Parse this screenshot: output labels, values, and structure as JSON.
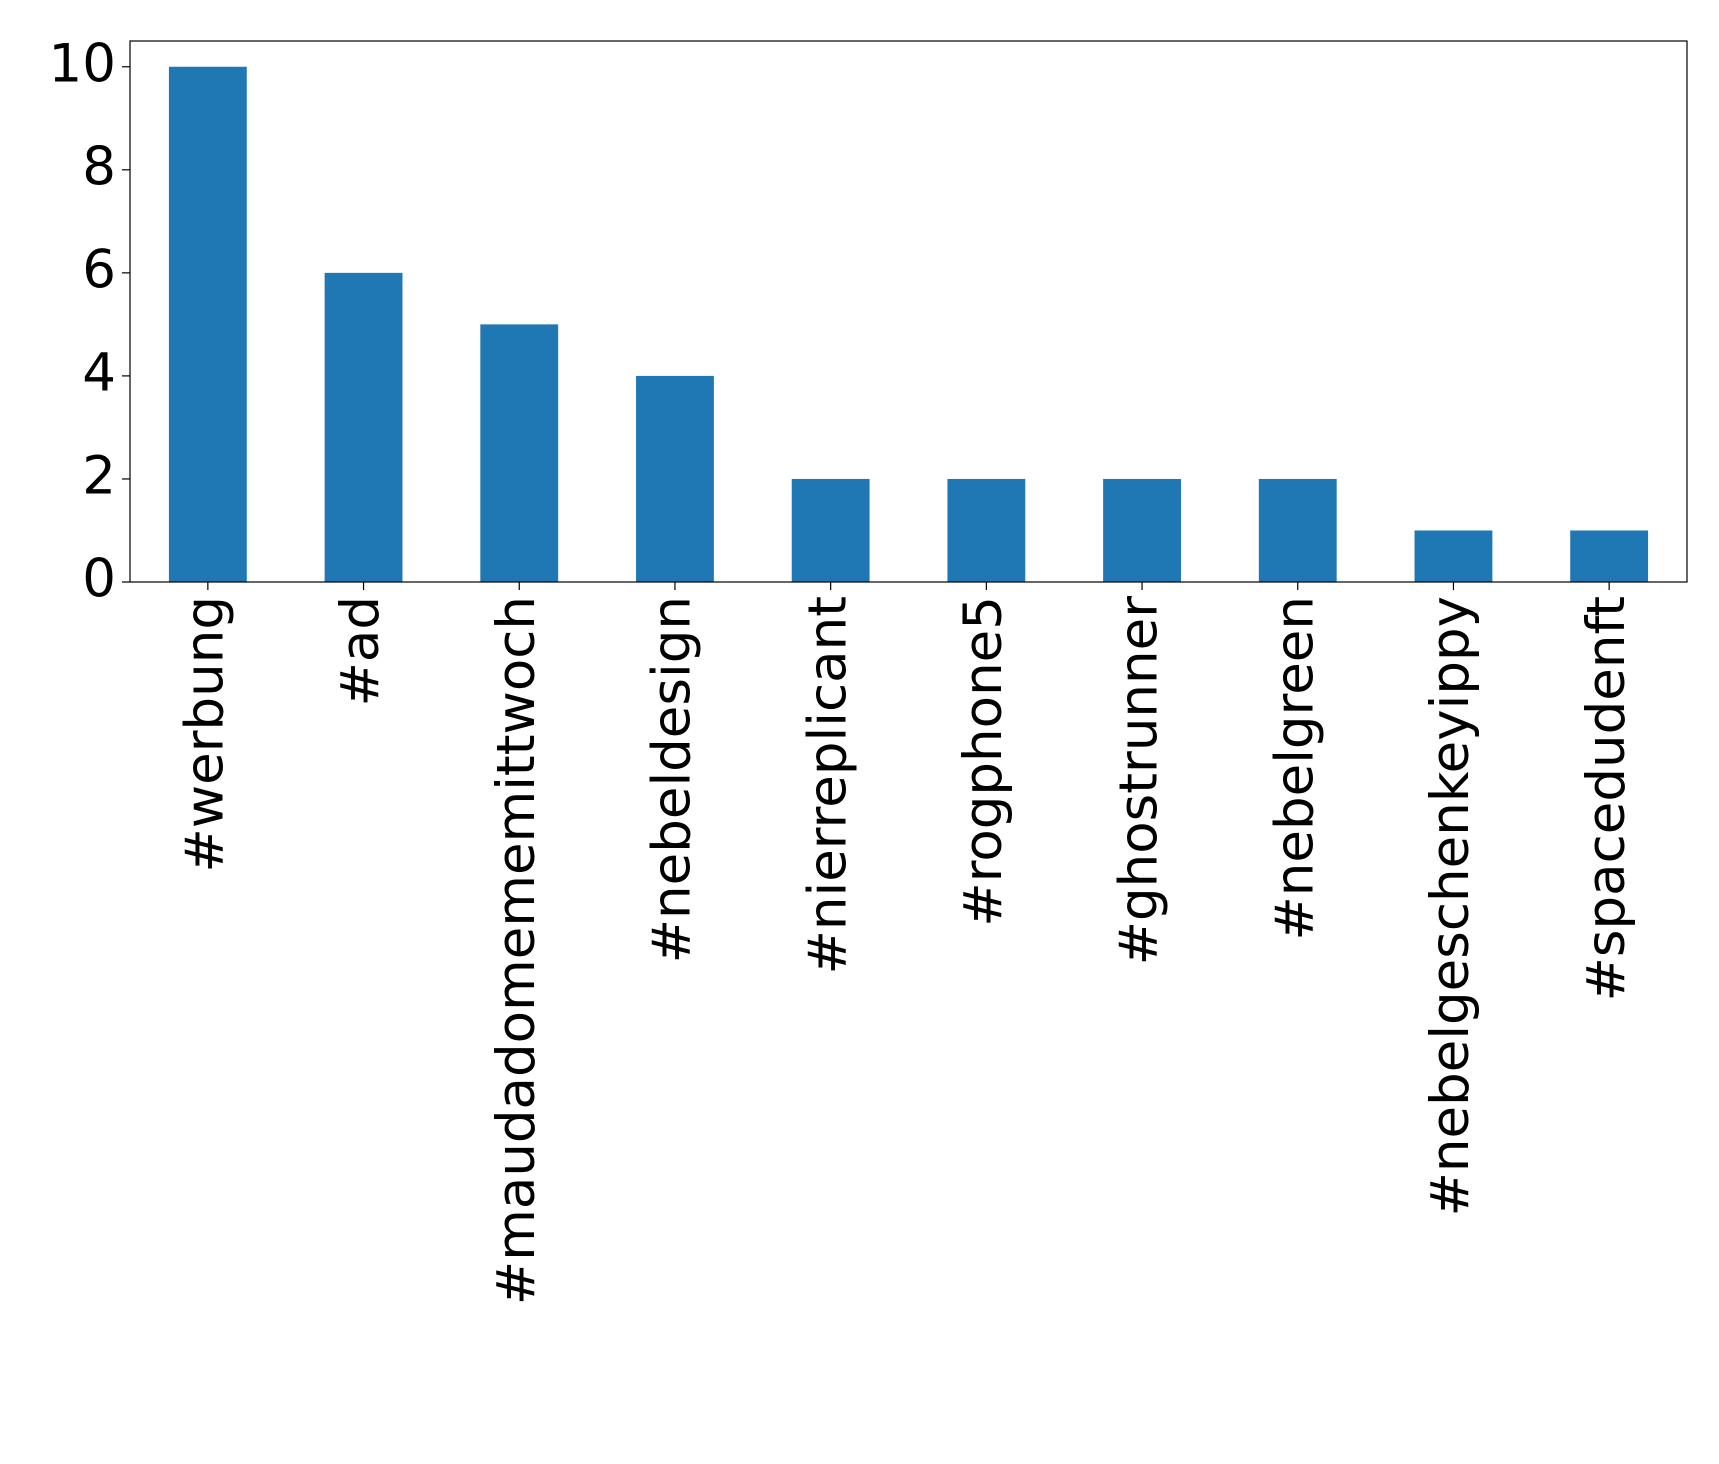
{
  "chart_data": {
    "type": "bar",
    "categories": [
      "#werbung",
      "#ad",
      "#maudadomememittwoch",
      "#nebeldesign",
      "#nierreplicant",
      "#rogphone5",
      "#ghostrunner",
      "#nebelgreen",
      "#nebelgeschenkeyippy",
      "#spacedudenft"
    ],
    "values": [
      10,
      6,
      5,
      4,
      2,
      2,
      2,
      2,
      1,
      1
    ],
    "color": "#1f77b4",
    "ylim": [
      0,
      10.5
    ],
    "yticks": [
      0,
      2,
      4,
      6,
      8,
      10
    ],
    "grid": false
  }
}
